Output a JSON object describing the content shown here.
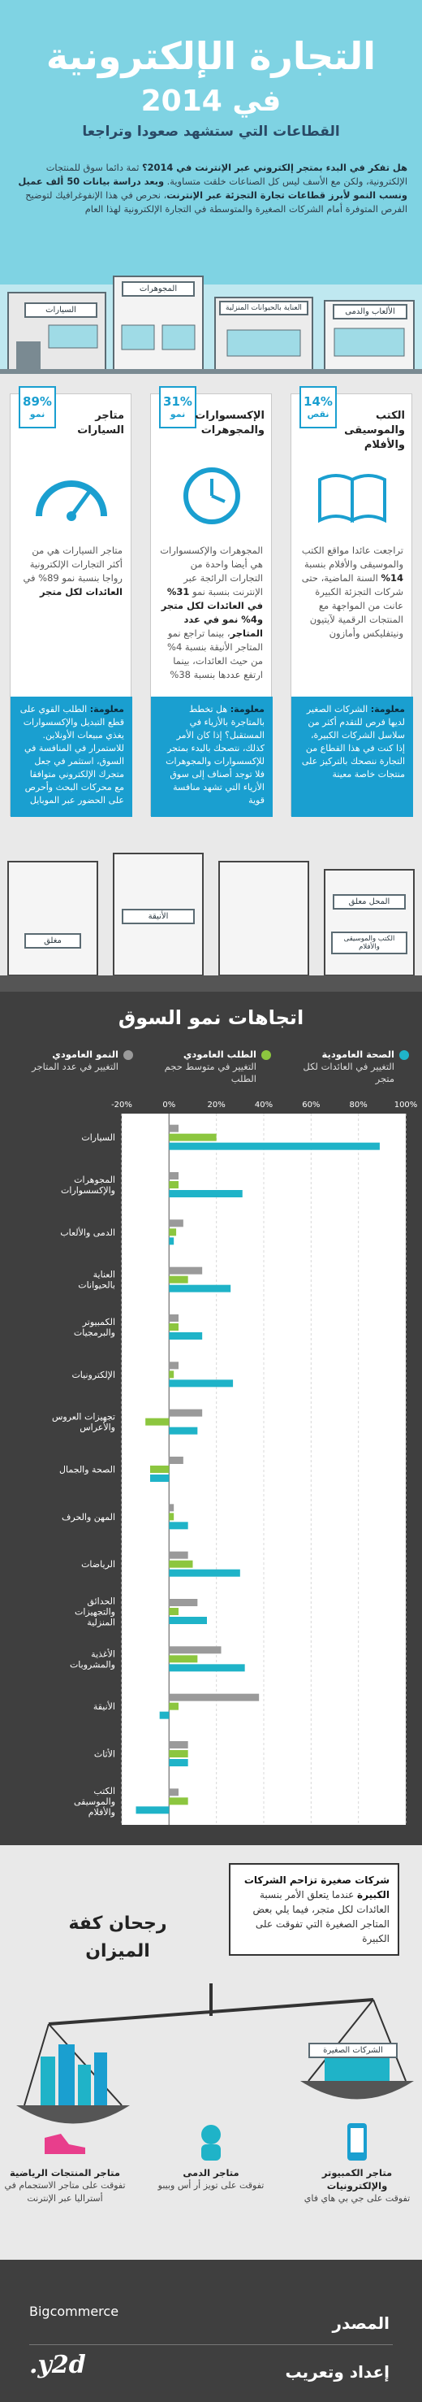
{
  "header": {
    "title_line1": "التجارة الإلكترونية",
    "title_line2": "في 2014",
    "subtitle": "القطاعات التي ستشهد صعودا وتراجعا",
    "intro_lead": "هل تفكر في البدء بمتجر إلكتروني عبر الإنترنت في 2014؟",
    "intro_body": " ثمة دائما سوق للمنتجات الإلكترونية، ولكن مع الأسف ليس كل الصناعات خلقت متساوية. ",
    "intro_lead2": "وبعد دراسة بيانات 50 ألف عميل ونسب النمو لأبرز قطاعات تجارة التجزئة عبر الإنترنت",
    "intro_tail": "، نحرص في هذا الإنفوغرافيك لتوضيح الفرص المتوفرة أمام الشركات الصغيرة والمتوسطة في التجارة الإلكترونية لهذا العام",
    "shop_signs": [
      "السيارات",
      "المجوهرات",
      "العناية بالحيوانات المنزلية",
      "الألعاب والدمى"
    ]
  },
  "categories": [
    {
      "percent": "89%",
      "direction": "نمو",
      "name": "متاجر السيارات",
      "icon": "speedometer-icon",
      "desc": "متاجر السيارات هي من أكثر التجارات الإلكترونية رواجا بنسبة نمو 89% في",
      "desc_bold": "العائدات لكل متجر",
      "info_bold": "معلومة:",
      "info": "الطلب القوي على قطع التبديل والإكسسوارات يغذي مبيعات الأونلاين. للاستمرار في المنافسة في السوق، استثمر في جعل متجرك الإلكتروني متوافقا مع محركات البحث وأحرص على الحضور عبر الموبايل"
    },
    {
      "percent": "31%",
      "direction": "نمو",
      "name": "الإكسسوارات والمجوهرات",
      "icon": "clock-icon",
      "desc": "المجوهرات والإكسسوارات هي أيضا واحدة من التجارات الرائجة عبر الإنترنت بنسبة نمو",
      "desc_bold": "31% في العائدات لكل متجر و4% نمو في عدد المتاجر",
      "desc_tail": "، بينما تراجع نمو المتاجر الأنيقة بنسبة 4% من حيث العائدات، بينما ارتفع عددها بنسبة 38%",
      "info_bold": "معلومة:",
      "info": "هل تخطط بالمتاجرة بالأزياء في المستقبل؟ إذا كان الأمر كذلك، نتصحك بالبدء بمتجر للإكسسوارات والمجوهرات فلا توجد أصناف إلى سوق الأزياء التي تشهد منافسة قوية"
    },
    {
      "percent": "14%",
      "direction": "نقص",
      "name": "الكتب والموسيقى والأفلام",
      "icon": "open-book-icon",
      "desc": "تراجعت عائدا مواقع الكتب والموسيقى والأفلام بنسبة",
      "desc_bold": "14%",
      "desc_tail": " السنة الماضية، حتى شركات التجزئة الكبيرة عانت من المواجهة مع المنتجات الرقمية لآيتيون ونيتفليكس وأمازون",
      "info_bold": "معلومة:",
      "info": "الشركات الصغير لديها فرص للتقدم أكثر من سلاسل الشركات الكبيرة، إذا كنت في هذا القطاع من التجارة ننصحك بالتركيز على منتجات خاصة معينة"
    }
  ],
  "street_signs": [
    "المحل معلق",
    "الأنيقة",
    "الكتب والموسيقى والأفلام",
    "مغلق"
  ],
  "chart_section": {
    "title": "اتجاهات نمو السوق",
    "legend": [
      {
        "title": "الصحة العامودية",
        "sub": "التغيير في العائدات لكل متجر",
        "color": "#1fb3c8"
      },
      {
        "title": "الطلب العامودي",
        "sub": "التغيير في متوسط حجم الطلب",
        "color": "#8cc63f"
      },
      {
        "title": "النمو العامودي",
        "sub": "التغيير في عدد المتاجر",
        "color": "#9a9a9a"
      }
    ]
  },
  "chart_data": {
    "type": "bar",
    "orientation": "horizontal",
    "title": "اتجاهات نمو السوق",
    "xlim": [
      -20,
      100
    ],
    "xticks": [
      "-20%",
      "0%",
      "20%",
      "40%",
      "60%",
      "80%",
      "100%"
    ],
    "tick_values": [
      -20,
      0,
      20,
      40,
      60,
      80,
      100
    ],
    "categories": [
      "السيارات",
      "المجوهرات والإكسسوارات",
      "الدمى والألعاب",
      "العناية بالحيوانات",
      "الكمبيوتر والبرمجيات",
      "الإلكترونيات",
      "تجهيزات العروس والأعراس",
      "الصحة والجمال",
      "المهن والحرف",
      "الرياضات",
      "الحدائق والتجهيزات المنزلية",
      "الأغذية والمشروبات",
      "الأنيقة",
      "الأثاث",
      "الكتب والموسيقى والأفلام"
    ],
    "series": [
      {
        "name": "النمو العامودي",
        "color": "#9a9a9a",
        "values": [
          4,
          4,
          6,
          14,
          4,
          4,
          14,
          6,
          2,
          8,
          12,
          22,
          38,
          8,
          4
        ]
      },
      {
        "name": "الطلب العامودي",
        "color": "#8cc63f",
        "values": [
          20,
          4,
          3,
          8,
          4,
          2,
          -10,
          -8,
          2,
          10,
          4,
          12,
          4,
          8,
          8
        ]
      },
      {
        "name": "الصحة العامودية",
        "color": "#1fb3c8",
        "values": [
          89,
          31,
          2,
          26,
          14,
          27,
          12,
          -8,
          8,
          30,
          16,
          32,
          -4,
          8,
          -14
        ]
      }
    ]
  },
  "balance": {
    "title_line1": "رجحان كفة",
    "title_line2": "الميزان",
    "box_bold": "شركات صغيرة تزاحم الشركات الكبيرة",
    "box": " عندما يتعلق الأمر بنسبة العائدات لكل متجر، فيما يلي بعض المتاجر الصغيرة التي تفوقت على الكبيرة",
    "small_label": "الشركات الصغيرة",
    "examples": [
      {
        "name": "متاجر المنتجات الرياضية",
        "text": "تفوقت على متاجر الاستجمام في أستراليا عبر الإنترنت",
        "icon": "sneaker-icon"
      },
      {
        "name": "متاجر الدمى",
        "text": "تفوقت على تويز أر أس وبيبو",
        "icon": "baby-icon"
      },
      {
        "name": "متاجر الكمبيوتر والإلكترونيات",
        "text": "تفوقت على جي بي هاي فاي",
        "icon": "phone-icon"
      }
    ]
  },
  "footer": {
    "source_label": "المصدر",
    "source_logo": "Bigcommerce",
    "prepared_label": "إعداد وتعريب",
    "prepared_logo": "y2d."
  }
}
